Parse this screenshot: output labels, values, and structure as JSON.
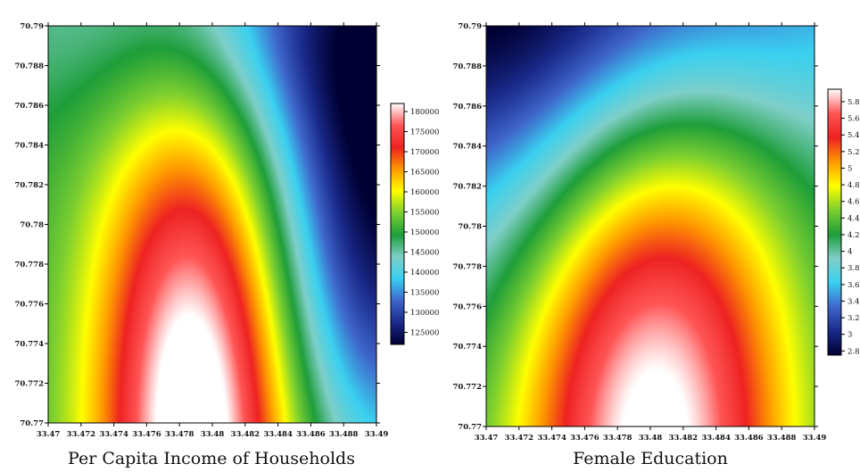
{
  "chart_data": [
    {
      "type": "heatmap",
      "title": "Per Capita Income of Households",
      "x_ticks": [
        "33.47",
        "33.472",
        "33.474",
        "33.476",
        "33.478",
        "33.48",
        "33.482",
        "33.484",
        "33.486",
        "33.488",
        "33.49"
      ],
      "y_ticks": [
        "70.77",
        "70.772",
        "70.774",
        "70.776",
        "70.778",
        "70.78",
        "70.782",
        "70.784",
        "70.786",
        "70.788",
        "70.79"
      ],
      "xlim": [
        33.47,
        33.49
      ],
      "ylim": [
        70.77,
        70.79
      ],
      "colorbar_ticks": [
        "125000",
        "130000",
        "135000",
        "140000",
        "145000",
        "150000",
        "155000",
        "160000",
        "165000",
        "170000",
        "175000",
        "180000"
      ],
      "zlim": [
        122000,
        182000
      ],
      "colormap": [
        "#000033",
        "#1a2a8a",
        "#3f66cc",
        "#3ad0f0",
        "#7fcfc8",
        "#1e9e3a",
        "#7ccf30",
        "#ffff00",
        "#ff9900",
        "#ee2222",
        "#ff5555",
        "#ffffff"
      ],
      "surface": {
        "base": 150000,
        "components": [
          {
            "type": "gaussian",
            "amplitude": 38000,
            "x": 33.479,
            "y": 70.7698,
            "sx": 0.0043,
            "sy": 0.012
          },
          {
            "type": "gaussian",
            "amplitude": -26000,
            "x": 33.4905,
            "y": 70.7802,
            "sx": 0.0052,
            "sy": 0.0088
          },
          {
            "type": "gaussian",
            "amplitude": -14000,
            "x": 33.4885,
            "y": 70.791,
            "sx": 0.0085,
            "sy": 0.006
          },
          {
            "type": "gaussian",
            "amplitude": -5000,
            "x": 33.478,
            "y": 70.791,
            "sx": 0.01,
            "sy": 0.0045
          }
        ]
      }
    },
    {
      "type": "heatmap",
      "title": "Female Education",
      "x_ticks": [
        "33.47",
        "33.472",
        "33.474",
        "33.476",
        "33.478",
        "33.48",
        "33.482",
        "33.484",
        "33.486",
        "33.488",
        "33.49"
      ],
      "y_ticks": [
        "70.77",
        "70.772",
        "70.774",
        "70.776",
        "70.778",
        "70.78",
        "70.782",
        "70.784",
        "70.786",
        "70.788",
        "70.79"
      ],
      "xlim": [
        33.47,
        33.49
      ],
      "ylim": [
        70.77,
        70.79
      ],
      "colorbar_ticks": [
        "2.8",
        "3",
        "3.2",
        "3.4",
        "3.6",
        "3.8",
        "4",
        "4.2",
        "4.4",
        "4.6",
        "4.8",
        "5",
        "5.2",
        "5.4",
        "5.6",
        "5.8"
      ],
      "zlim": [
        2.75,
        5.95
      ],
      "colormap": [
        "#000033",
        "#1a2a8a",
        "#3f66cc",
        "#3ad0f0",
        "#7fcfc8",
        "#1e9e3a",
        "#7ccf30",
        "#ffff00",
        "#ff9900",
        "#ee2222",
        "#ff5555",
        "#ffffff"
      ],
      "surface": {
        "base": 4.0,
        "components": [
          {
            "type": "gaussian",
            "amplitude": 2.1,
            "x": 33.4802,
            "y": 70.7698,
            "sx": 0.0062,
            "sy": 0.0125
          },
          {
            "type": "gaussian",
            "amplitude": -1.3,
            "x": 33.4705,
            "y": 70.7915,
            "sx": 0.0095,
            "sy": 0.009
          },
          {
            "type": "gaussian",
            "amplitude": -0.55,
            "x": 33.485,
            "y": 70.7915,
            "sx": 0.009,
            "sy": 0.0055
          }
        ]
      }
    }
  ]
}
